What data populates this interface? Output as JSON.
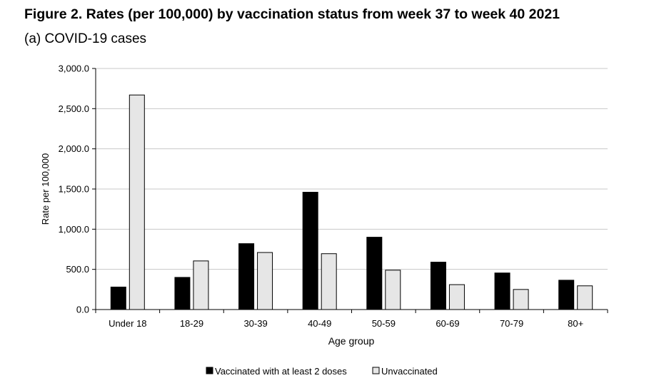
{
  "title": "Figure 2. Rates (per 100,000) by vaccination status from week 37 to week 40 2021",
  "subtitle": "(a) COVID-19 cases",
  "chart_data": {
    "type": "bar",
    "categories": [
      "Under 18",
      "18-29",
      "30-39",
      "40-49",
      "50-59",
      "60-69",
      "70-79",
      "80+"
    ],
    "series": [
      {
        "name": "Vaccinated with at least 2 doses",
        "color": "#000000",
        "values": [
          280,
          400,
          820,
          1460,
          900,
          590,
          455,
          365
        ]
      },
      {
        "name": "Unvaccinated",
        "color": "#e6e6e6",
        "values": [
          2670,
          605,
          710,
          695,
          490,
          310,
          250,
          295
        ]
      }
    ],
    "xlabel": "Age group",
    "ylabel": "Rate per 100,000",
    "ylim": [
      0,
      3000
    ],
    "yticks": [
      0,
      500,
      1000,
      1500,
      2000,
      2500,
      3000
    ],
    "ytick_labels": [
      "0.0",
      "500.0",
      "1,000.0",
      "1,500.0",
      "2,000.0",
      "2,500.0",
      "3,000.0"
    ],
    "grid": true,
    "legend_position": "bottom"
  }
}
